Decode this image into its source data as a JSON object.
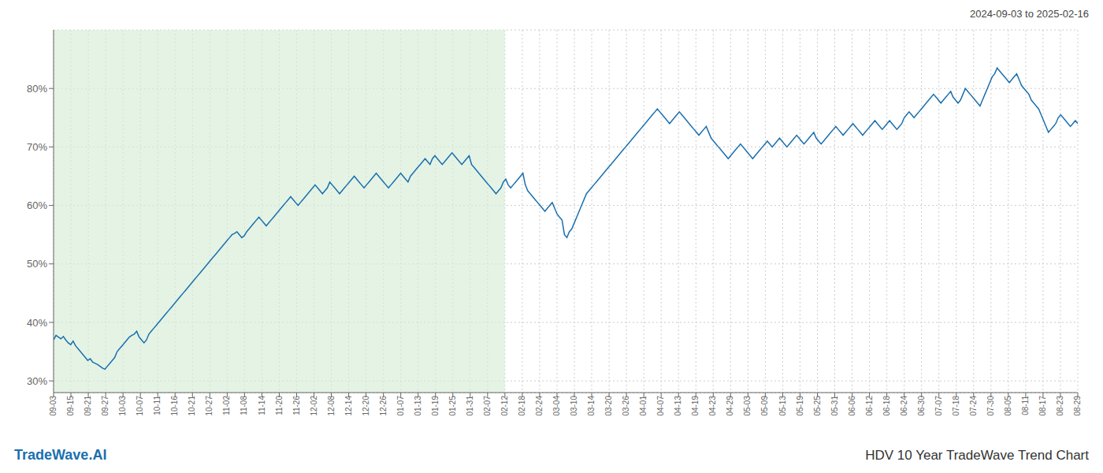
{
  "chart_data": {
    "type": "line",
    "title": "HDV 10 Year TradeWave Trend Chart",
    "subtitle": "2024-09-03 to 2025-02-16",
    "annotations": [
      "TradeWave.AI"
    ],
    "color": "#1a6faf",
    "grid": true,
    "ylim": [
      28,
      90
    ],
    "yticks": [
      {
        "value": 30,
        "label": "30%"
      },
      {
        "value": 40,
        "label": "40%"
      },
      {
        "value": 50,
        "label": "50%"
      },
      {
        "value": 60,
        "label": "60%"
      },
      {
        "value": 70,
        "label": "70%"
      },
      {
        "value": 80,
        "label": "80%"
      }
    ],
    "xlim": [
      0,
      59
    ],
    "xticks": [
      {
        "value": 0,
        "label": "09-03"
      },
      {
        "value": 1,
        "label": "09-15"
      },
      {
        "value": 2,
        "label": "09-21"
      },
      {
        "value": 3,
        "label": "09-27"
      },
      {
        "value": 4,
        "label": "10-03"
      },
      {
        "value": 5,
        "label": "10-07"
      },
      {
        "value": 6,
        "label": "10-11"
      },
      {
        "value": 7,
        "label": "10-16"
      },
      {
        "value": 8,
        "label": "10-21"
      },
      {
        "value": 9,
        "label": "10-27"
      },
      {
        "value": 10,
        "label": "11-02"
      },
      {
        "value": 11,
        "label": "11-08"
      },
      {
        "value": 12,
        "label": "11-14"
      },
      {
        "value": 13,
        "label": "11-20"
      },
      {
        "value": 14,
        "label": "11-26"
      },
      {
        "value": 15,
        "label": "12-02"
      },
      {
        "value": 16,
        "label": "12-08"
      },
      {
        "value": 17,
        "label": "12-14"
      },
      {
        "value": 18,
        "label": "12-20"
      },
      {
        "value": 19,
        "label": "12-26"
      },
      {
        "value": 20,
        "label": "01-07"
      },
      {
        "value": 21,
        "label": "01-13"
      },
      {
        "value": 22,
        "label": "01-19"
      },
      {
        "value": 23,
        "label": "01-25"
      },
      {
        "value": 24,
        "label": "01-31"
      },
      {
        "value": 25,
        "label": "02-07"
      },
      {
        "value": 26,
        "label": "02-12"
      },
      {
        "value": 27,
        "label": "02-18"
      },
      {
        "value": 28,
        "label": "02-24"
      },
      {
        "value": 29,
        "label": "03-04"
      },
      {
        "value": 30,
        "label": "03-10"
      },
      {
        "value": 31,
        "label": "03-14"
      },
      {
        "value": 32,
        "label": "03-20"
      },
      {
        "value": 33,
        "label": "03-26"
      },
      {
        "value": 34,
        "label": "04-01"
      },
      {
        "value": 35,
        "label": "04-07"
      },
      {
        "value": 36,
        "label": "04-13"
      },
      {
        "value": 37,
        "label": "04-19"
      },
      {
        "value": 38,
        "label": "04-23"
      },
      {
        "value": 39,
        "label": "04-29"
      },
      {
        "value": 40,
        "label": "05-03"
      },
      {
        "value": 41,
        "label": "05-09"
      },
      {
        "value": 42,
        "label": "05-13"
      },
      {
        "value": 43,
        "label": "05-19"
      },
      {
        "value": 44,
        "label": "05-25"
      },
      {
        "value": 45,
        "label": "05-31"
      },
      {
        "value": 46,
        "label": "06-06"
      },
      {
        "value": 47,
        "label": "06-12"
      },
      {
        "value": 48,
        "label": "06-18"
      },
      {
        "value": 49,
        "label": "06-24"
      },
      {
        "value": 50,
        "label": "06-30"
      },
      {
        "value": 51,
        "label": "07-07"
      },
      {
        "value": 52,
        "label": "07-18"
      },
      {
        "value": 53,
        "label": "07-24"
      },
      {
        "value": 54,
        "label": "07-30"
      },
      {
        "value": 55,
        "label": "08-05"
      },
      {
        "value": 56,
        "label": "08-11"
      },
      {
        "value": 57,
        "label": "08-17"
      },
      {
        "value": 58,
        "label": "08-23"
      },
      {
        "value": 59,
        "label": "08-29"
      }
    ],
    "shaded_region": {
      "x": [
        0,
        26
      ],
      "color": "#d6ecd6"
    },
    "values": [
      37.0,
      37.8,
      37.5,
      37.2,
      37.6,
      37.0,
      36.5,
      36.2,
      36.8,
      36.0,
      35.5,
      35.0,
      34.5,
      34.0,
      33.5,
      33.8,
      33.2,
      33.0,
      32.8,
      32.5,
      32.2,
      32.0,
      32.5,
      33.0,
      33.5,
      34.0,
      35.0,
      35.5,
      36.0,
      36.5,
      37.0,
      37.5,
      37.8,
      38.0,
      38.5,
      37.5,
      37.0,
      36.5,
      37.0,
      38.0,
      38.5,
      39.0,
      39.5,
      40.0,
      40.5,
      41.0,
      41.5,
      42.0,
      42.5,
      43.0,
      43.5,
      44.0,
      44.5,
      45.0,
      45.5,
      46.0,
      46.5,
      47.0,
      47.5,
      48.0,
      48.5,
      49.0,
      49.5,
      50.0,
      50.5,
      51.0,
      51.5,
      52.0,
      52.5,
      53.0,
      53.5,
      54.0,
      54.5,
      55.0,
      55.2,
      55.5,
      55.0,
      54.5,
      54.8,
      55.5,
      56.0,
      56.5,
      57.0,
      57.5,
      58.0,
      57.5,
      57.0,
      56.5,
      57.0,
      57.5,
      58.0,
      58.5,
      59.0,
      59.5,
      60.0,
      60.5,
      61.0,
      61.5,
      61.0,
      60.5,
      60.0,
      60.5,
      61.0,
      61.5,
      62.0,
      62.5,
      63.0,
      63.5,
      63.0,
      62.5,
      62.0,
      62.5,
      63.0,
      64.0,
      63.5,
      63.0,
      62.5,
      62.0,
      62.5,
      63.0,
      63.5,
      64.0,
      64.5,
      65.0,
      64.5,
      64.0,
      63.5,
      63.0,
      63.5,
      64.0,
      64.5,
      65.0,
      65.5,
      65.0,
      64.5,
      64.0,
      63.5,
      63.0,
      63.5,
      64.0,
      64.5,
      65.0,
      65.5,
      65.0,
      64.5,
      64.0,
      65.0,
      65.5,
      66.0,
      66.5,
      67.0,
      67.5,
      68.0,
      67.5,
      67.0,
      68.0,
      68.5,
      68.0,
      67.5,
      67.0,
      67.5,
      68.0,
      68.5,
      69.0,
      68.5,
      68.0,
      67.5,
      67.0,
      67.5,
      68.0,
      68.5,
      67.0,
      66.5,
      66.0,
      65.5,
      65.0,
      64.5,
      64.0,
      63.5,
      63.0,
      62.5,
      62.0,
      62.5,
      63.0,
      64.0,
      64.5,
      63.5,
      63.0,
      63.5,
      64.0,
      64.5,
      65.0,
      65.5,
      63.5,
      62.5,
      62.0,
      61.5,
      61.0,
      60.5,
      60.0,
      59.5,
      59.0,
      59.5,
      60.0,
      60.5,
      59.5,
      58.5,
      58.0,
      57.5,
      55.0,
      54.5,
      55.5,
      56.0,
      57.0,
      58.0,
      59.0,
      60.0,
      61.0,
      62.0,
      62.5,
      63.0,
      63.5,
      64.0,
      64.5,
      65.0,
      65.5,
      66.0,
      66.5,
      67.0,
      67.5,
      68.0,
      68.5,
      69.0,
      69.5,
      70.0,
      70.5,
      71.0,
      71.5,
      72.0,
      72.5,
      73.0,
      73.5,
      74.0,
      74.5,
      75.0,
      75.5,
      76.0,
      76.5,
      76.0,
      75.5,
      75.0,
      74.5,
      74.0,
      74.5,
      75.0,
      75.5,
      76.0,
      75.5,
      75.0,
      74.5,
      74.0,
      73.5,
      73.0,
      72.5,
      72.0,
      72.5,
      73.0,
      73.5,
      72.5,
      71.5,
      71.0,
      70.5,
      70.0,
      69.5,
      69.0,
      68.5,
      68.0,
      68.5,
      69.0,
      69.5,
      70.0,
      70.5,
      70.0,
      69.5,
      69.0,
      68.5,
      68.0,
      68.5,
      69.0,
      69.5,
      70.0,
      70.5,
      71.0,
      70.5,
      70.0,
      70.5,
      71.0,
      71.5,
      71.0,
      70.5,
      70.0,
      70.5,
      71.0,
      71.5,
      72.0,
      71.5,
      71.0,
      70.5,
      71.0,
      71.5,
      72.0,
      72.5,
      71.5,
      71.0,
      70.5,
      71.0,
      71.5,
      72.0,
      72.5,
      73.0,
      73.5,
      73.0,
      72.5,
      72.0,
      72.5,
      73.0,
      73.5,
      74.0,
      73.5,
      73.0,
      72.5,
      72.0,
      72.5,
      73.0,
      73.5,
      74.0,
      74.5,
      74.0,
      73.5,
      73.0,
      73.5,
      74.0,
      74.5,
      74.0,
      73.5,
      73.0,
      73.5,
      74.0,
      75.0,
      75.5,
      76.0,
      75.5,
      75.0,
      75.5,
      76.0,
      76.5,
      77.0,
      77.5,
      78.0,
      78.5,
      79.0,
      78.5,
      78.0,
      77.5,
      78.0,
      78.5,
      79.0,
      79.5,
      78.5,
      78.0,
      77.5,
      78.0,
      79.0,
      80.0,
      79.5,
      79.0,
      78.5,
      78.0,
      77.5,
      77.0,
      78.0,
      79.0,
      80.0,
      81.0,
      82.0,
      82.5,
      83.5,
      83.0,
      82.5,
      82.0,
      81.5,
      81.0,
      81.5,
      82.0,
      82.5,
      81.5,
      80.5,
      80.0,
      79.5,
      79.0,
      78.0,
      77.5,
      77.0,
      76.5,
      75.5,
      74.5,
      73.5,
      72.5,
      73.0,
      73.5,
      74.0,
      75.0,
      75.5,
      75.0,
      74.5,
      74.0,
      73.5,
      74.0,
      74.5,
      74.0
    ]
  }
}
